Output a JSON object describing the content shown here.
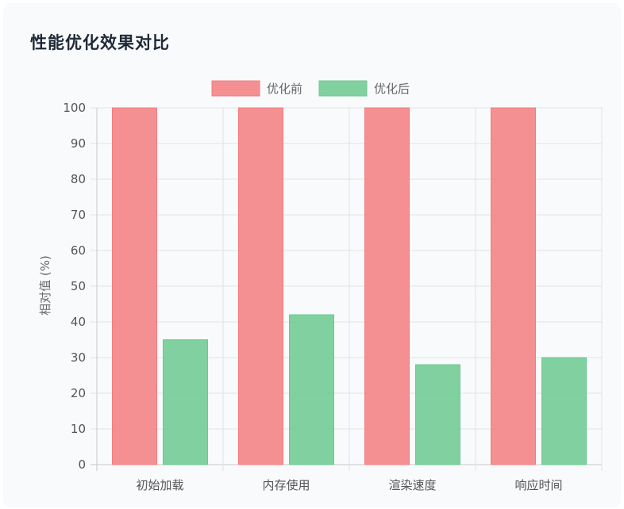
{
  "page": {
    "title": "性能优化效果对比"
  },
  "chart_data": {
    "type": "bar",
    "categories": [
      "初始加载",
      "内存使用",
      "渲染速度",
      "响应时间"
    ],
    "series": [
      {
        "name": "优化前",
        "values": [
          100,
          100,
          100,
          100
        ],
        "color": "#f47c7f"
      },
      {
        "name": "优化后",
        "values": [
          35,
          42,
          28,
          30
        ],
        "color": "#6cc98f"
      }
    ],
    "ylabel": "相对值 (%)",
    "ylim": [
      0,
      100
    ],
    "yticks": [
      0,
      10,
      20,
      30,
      40,
      50,
      60,
      70,
      80,
      90,
      100
    ],
    "grid": true,
    "legend_position": "top"
  }
}
